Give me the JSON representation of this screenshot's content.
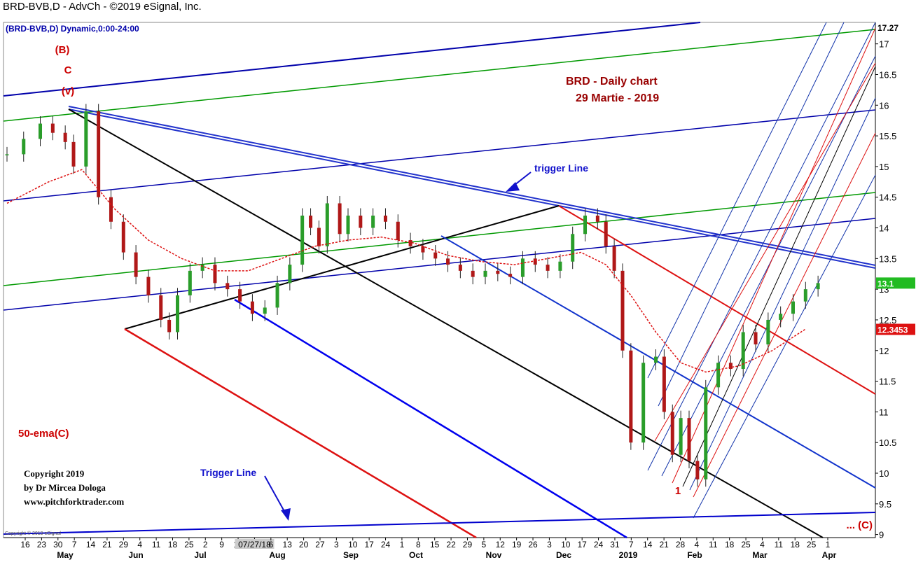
{
  "window_title": "BRD-BVB,D - AdvCh - ©2019 eSignal, Inc.",
  "chart_data": {
    "type": "candlestick",
    "symbol_label": "(BRD-BVB,D) Dynamic,0:00-24:00",
    "title": "BRD -  Daily chart",
    "subtitle": "29 Martie - 2019",
    "ylim": [
      8.95,
      17.35
    ],
    "y_ticks": [
      "9",
      "9.5",
      "10",
      "10.5",
      "11",
      "11.5",
      "12",
      "12.5",
      "13",
      "13.5",
      "14",
      "14.5",
      "15",
      "15.5",
      "16",
      "16.5",
      "17"
    ],
    "price_labels": [
      {
        "text": "17.27",
        "value": 17.27,
        "bg": "#ffffff",
        "fg": "#000000"
      },
      {
        "text": "13.1",
        "value": 13.1,
        "bg": "#22bb22",
        "fg": "#ffffff"
      },
      {
        "text": "12.3453",
        "value": 12.3453,
        "bg": "#dd1111",
        "fg": "#ffffff"
      }
    ],
    "x_day_labels": [
      "16",
      "23",
      "30",
      "7",
      "14",
      "21",
      "29",
      "4",
      "11",
      "18",
      "25",
      "2",
      "9",
      "16",
      "07/27/18",
      "6",
      "13",
      "20",
      "27",
      "3",
      "10",
      "17",
      "24",
      "1",
      "8",
      "15",
      "22",
      "29",
      "5",
      "12",
      "19",
      "26",
      "3",
      "10",
      "17",
      "24",
      "31",
      "7",
      "14",
      "21",
      "28",
      "4",
      "11",
      "18",
      "25",
      "4",
      "11",
      "18",
      "25",
      "1"
    ],
    "x_month_labels": [
      "May",
      "Jun",
      "Jul",
      "Aug",
      "Sep",
      "Oct",
      "Nov",
      "Dec",
      "2019",
      "Feb",
      "Mar",
      "Apr"
    ],
    "annotations": {
      "wave_B": "(B)",
      "wave_C": "C",
      "wave_v": "(v)",
      "wave_1": "1",
      "wave_C_target": "... (C)",
      "trigger_line_upper": "trigger Line",
      "trigger_line_lower": "Trigger Line",
      "ema_label": "50-ema(C)",
      "copyright_1": "Copyright 2019",
      "copyright_2": "by Dr Mircea Dologa",
      "copyright_3": "www.pitchforktrader.com",
      "esignal_note": "Copyright © 2019 eSignal"
    },
    "series": [
      {
        "type": "ohlc-approx",
        "points": [
          [
            0,
            15.2
          ],
          [
            4,
            15.45
          ],
          [
            8,
            15.7
          ],
          [
            11,
            15.55
          ],
          [
            14,
            15.4
          ],
          [
            16,
            15.0
          ],
          [
            19,
            15.9
          ],
          [
            22,
            14.5
          ],
          [
            25,
            14.1
          ],
          [
            28,
            13.6
          ],
          [
            31,
            13.2
          ],
          [
            34,
            12.9
          ],
          [
            37,
            12.5
          ],
          [
            39,
            12.3
          ],
          [
            41,
            12.9
          ],
          [
            44,
            13.3
          ],
          [
            47,
            13.4
          ],
          [
            50,
            13.1
          ],
          [
            53,
            13.0
          ],
          [
            56,
            12.8
          ],
          [
            59,
            12.6
          ],
          [
            62,
            12.7
          ],
          [
            65,
            13.1
          ],
          [
            68,
            13.4
          ],
          [
            71,
            14.2
          ],
          [
            73,
            14.0
          ],
          [
            75,
            13.7
          ],
          [
            77,
            14.4
          ],
          [
            80,
            13.9
          ],
          [
            82,
            14.2
          ],
          [
            85,
            14.0
          ],
          [
            88,
            14.2
          ],
          [
            91,
            14.1
          ],
          [
            94,
            13.8
          ],
          [
            97,
            13.7
          ],
          [
            100,
            13.6
          ],
          [
            103,
            13.5
          ],
          [
            106,
            13.4
          ],
          [
            109,
            13.3
          ],
          [
            112,
            13.2
          ],
          [
            115,
            13.3
          ],
          [
            118,
            13.25
          ],
          [
            121,
            13.2
          ],
          [
            124,
            13.5
          ],
          [
            127,
            13.4
          ],
          [
            130,
            13.3
          ],
          [
            133,
            13.45
          ],
          [
            136,
            13.9
          ],
          [
            139,
            14.2
          ],
          [
            142,
            14.1
          ],
          [
            144,
            13.7
          ],
          [
            146,
            13.3
          ],
          [
            148,
            12.0
          ],
          [
            150,
            10.5
          ],
          [
            153,
            11.8
          ],
          [
            156,
            11.9
          ],
          [
            158,
            11.0
          ],
          [
            160,
            10.3
          ],
          [
            162,
            10.9
          ],
          [
            164,
            10.2
          ],
          [
            166,
            9.9
          ],
          [
            168,
            11.4
          ],
          [
            171,
            11.8
          ],
          [
            174,
            11.7
          ],
          [
            177,
            12.3
          ],
          [
            180,
            12.1
          ],
          [
            183,
            12.5
          ],
          [
            186,
            12.6
          ],
          [
            189,
            12.8
          ],
          [
            192,
            13.0
          ],
          [
            195,
            13.1
          ]
        ]
      },
      {
        "name": "50-ema(C)",
        "points": [
          [
            0,
            14.4
          ],
          [
            10,
            14.75
          ],
          [
            18,
            14.95
          ],
          [
            26,
            14.3
          ],
          [
            34,
            13.8
          ],
          [
            42,
            13.5
          ],
          [
            50,
            13.3
          ],
          [
            58,
            13.3
          ],
          [
            66,
            13.5
          ],
          [
            74,
            13.7
          ],
          [
            82,
            13.8
          ],
          [
            90,
            13.85
          ],
          [
            98,
            13.75
          ],
          [
            106,
            13.55
          ],
          [
            114,
            13.45
          ],
          [
            122,
            13.4
          ],
          [
            130,
            13.5
          ],
          [
            138,
            13.6
          ],
          [
            144,
            13.4
          ],
          [
            150,
            12.9
          ],
          [
            156,
            12.3
          ],
          [
            162,
            11.8
          ],
          [
            168,
            11.65
          ],
          [
            176,
            11.75
          ],
          [
            184,
            12.0
          ],
          [
            192,
            12.35
          ]
        ]
      }
    ]
  }
}
